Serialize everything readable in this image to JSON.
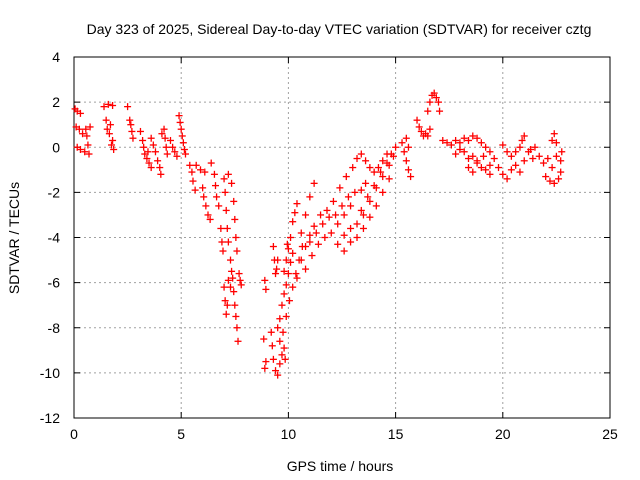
{
  "chart_data": {
    "type": "scatter",
    "title": "Day 323 of 2025, Sidereal Day-to-day VTEC variation (SDTVAR) for receiver cztg",
    "xlabel": "GPS time / hours",
    "ylabel": "SDTVAR / TECUs",
    "xlim": [
      0,
      25
    ],
    "ylim": [
      -12,
      4
    ],
    "xticks": [
      0,
      5,
      10,
      15,
      20,
      25
    ],
    "yticks": [
      4,
      2,
      0,
      -2,
      -4,
      -6,
      -8,
      -10,
      -12
    ],
    "grid": true,
    "marker": "+",
    "marker_color": "#ff0000",
    "series": [
      {
        "name": "SDTVAR",
        "points": [
          [
            0.05,
            1.7
          ],
          [
            0.15,
            1.6
          ],
          [
            0.3,
            1.5
          ],
          [
            0.1,
            0.9
          ],
          [
            0.25,
            0.8
          ],
          [
            0.4,
            0.6
          ],
          [
            0.15,
            0.0
          ],
          [
            0.3,
            -0.1
          ],
          [
            0.5,
            -0.2
          ],
          [
            0.55,
            0.8
          ],
          [
            0.6,
            0.5
          ],
          [
            0.65,
            0.1
          ],
          [
            0.7,
            -0.3
          ],
          [
            0.75,
            0.9
          ],
          [
            1.4,
            1.8
          ],
          [
            1.6,
            1.9
          ],
          [
            1.8,
            1.85
          ],
          [
            1.5,
            1.2
          ],
          [
            1.7,
            1.0
          ],
          [
            1.55,
            0.8
          ],
          [
            1.65,
            0.6
          ],
          [
            1.8,
            0.3
          ],
          [
            1.75,
            0.1
          ],
          [
            1.85,
            -0.1
          ],
          [
            2.5,
            1.8
          ],
          [
            2.6,
            1.2
          ],
          [
            2.65,
            1.0
          ],
          [
            2.7,
            0.7
          ],
          [
            2.75,
            0.4
          ],
          [
            3.1,
            0.7
          ],
          [
            3.2,
            0.3
          ],
          [
            3.25,
            0.0
          ],
          [
            3.3,
            -0.3
          ],
          [
            3.4,
            -0.5
          ],
          [
            3.5,
            -0.7
          ],
          [
            3.6,
            -0.9
          ],
          [
            3.45,
            -0.2
          ],
          [
            3.6,
            0.4
          ],
          [
            3.7,
            0.1
          ],
          [
            3.8,
            -0.2
          ],
          [
            3.9,
            -0.6
          ],
          [
            4.0,
            -0.9
          ],
          [
            4.05,
            -1.2
          ],
          [
            4.1,
            0.6
          ],
          [
            4.2,
            0.8
          ],
          [
            4.25,
            0.4
          ],
          [
            4.3,
            0.0
          ],
          [
            4.35,
            -0.3
          ],
          [
            4.5,
            0.3
          ],
          [
            4.6,
            0.0
          ],
          [
            4.7,
            -0.2
          ],
          [
            4.8,
            -0.4
          ],
          [
            4.9,
            1.4
          ],
          [
            4.95,
            1.1
          ],
          [
            5.0,
            0.8
          ],
          [
            5.05,
            0.5
          ],
          [
            5.1,
            0.2
          ],
          [
            5.15,
            -0.1
          ],
          [
            5.2,
            -0.3
          ],
          [
            5.4,
            -0.8
          ],
          [
            5.5,
            -1.1
          ],
          [
            5.55,
            -1.5
          ],
          [
            5.65,
            -1.9
          ],
          [
            5.7,
            -0.8
          ],
          [
            5.9,
            -1.0
          ],
          [
            6.1,
            -1.1
          ],
          [
            6.0,
            -1.8
          ],
          [
            6.05,
            -2.2
          ],
          [
            6.15,
            -2.6
          ],
          [
            6.25,
            -3.0
          ],
          [
            6.35,
            -3.2
          ],
          [
            6.4,
            -0.7
          ],
          [
            6.55,
            -1.2
          ],
          [
            6.6,
            -1.7
          ],
          [
            6.65,
            -2.2
          ],
          [
            6.75,
            -2.6
          ],
          [
            6.85,
            -3.6
          ],
          [
            6.9,
            -4.2
          ],
          [
            6.95,
            -4.6
          ],
          [
            7.0,
            -1.4
          ],
          [
            7.05,
            -2.0
          ],
          [
            7.1,
            -2.8
          ],
          [
            7.15,
            -3.6
          ],
          [
            7.2,
            -4.2
          ],
          [
            7.3,
            -5.0
          ],
          [
            7.35,
            -5.5
          ],
          [
            7.4,
            -5.8
          ],
          [
            7.45,
            -6.4
          ],
          [
            7.5,
            -7.0
          ],
          [
            7.55,
            -7.5
          ],
          [
            7.6,
            -8.0
          ],
          [
            7.65,
            -8.6
          ],
          [
            7.0,
            -6.2
          ],
          [
            7.05,
            -6.8
          ],
          [
            7.1,
            -7.4
          ],
          [
            7.15,
            -7.0
          ],
          [
            7.2,
            -5.9
          ],
          [
            7.3,
            -6.2
          ],
          [
            7.2,
            -1.2
          ],
          [
            7.35,
            -1.6
          ],
          [
            7.45,
            -2.4
          ],
          [
            7.5,
            -3.2
          ],
          [
            7.55,
            -4.0
          ],
          [
            7.6,
            -4.6
          ],
          [
            7.7,
            -5.6
          ],
          [
            7.75,
            -5.9
          ],
          [
            7.8,
            -6.1
          ],
          [
            8.9,
            -5.9
          ],
          [
            8.95,
            -6.3
          ],
          [
            8.85,
            -8.5
          ],
          [
            8.9,
            -9.8
          ],
          [
            8.95,
            -9.5
          ],
          [
            9.2,
            -8.2
          ],
          [
            9.25,
            -8.8
          ],
          [
            9.3,
            -9.4
          ],
          [
            9.4,
            -9.9
          ],
          [
            9.5,
            -10.1
          ],
          [
            9.6,
            -9.6
          ],
          [
            9.7,
            -9.2
          ],
          [
            9.8,
            -8.9
          ],
          [
            9.85,
            -9.4
          ],
          [
            9.3,
            -4.4
          ],
          [
            9.35,
            -5.0
          ],
          [
            9.4,
            -5.6
          ],
          [
            9.45,
            -5.4
          ],
          [
            9.5,
            -5.0
          ],
          [
            9.5,
            -8.0
          ],
          [
            9.6,
            -7.6
          ],
          [
            9.7,
            -7.0
          ],
          [
            9.8,
            -6.5
          ],
          [
            9.9,
            -6.1
          ],
          [
            10.0,
            -5.6
          ],
          [
            10.1,
            -5.1
          ],
          [
            10.2,
            -4.7
          ],
          [
            9.6,
            -8.6
          ],
          [
            9.75,
            -8.2
          ],
          [
            9.9,
            -7.5
          ],
          [
            10.05,
            -6.8
          ],
          [
            10.2,
            -6.2
          ],
          [
            10.35,
            -5.6
          ],
          [
            10.5,
            -5.0
          ],
          [
            10.65,
            -4.4
          ],
          [
            9.8,
            -5.5
          ],
          [
            9.9,
            -5.0
          ],
          [
            10.0,
            -4.5
          ],
          [
            9.95,
            -4.3
          ],
          [
            10.1,
            -4.0
          ],
          [
            10.2,
            -3.3
          ],
          [
            10.3,
            -2.9
          ],
          [
            10.4,
            -2.5
          ],
          [
            10.6,
            -3.8
          ],
          [
            10.8,
            -3.0
          ],
          [
            11.0,
            -2.2
          ],
          [
            11.2,
            -1.6
          ],
          [
            10.4,
            -5.8
          ],
          [
            10.6,
            -5.0
          ],
          [
            10.8,
            -4.4
          ],
          [
            11.0,
            -3.9
          ],
          [
            11.2,
            -3.5
          ],
          [
            11.5,
            -3.0
          ],
          [
            11.8,
            -2.8
          ],
          [
            12.1,
            -2.4
          ],
          [
            12.4,
            -1.8
          ],
          [
            12.7,
            -1.3
          ],
          [
            13.0,
            -0.9
          ],
          [
            13.2,
            -0.5
          ],
          [
            10.8,
            -5.4
          ],
          [
            11.1,
            -4.8
          ],
          [
            11.4,
            -4.3
          ],
          [
            11.7,
            -4.0
          ],
          [
            12.0,
            -3.8
          ],
          [
            12.3,
            -3.4
          ],
          [
            12.6,
            -3.0
          ],
          [
            12.9,
            -2.6
          ],
          [
            11.0,
            -4.2
          ],
          [
            11.3,
            -3.8
          ],
          [
            11.6,
            -3.4
          ],
          [
            11.9,
            -3.1
          ],
          [
            12.2,
            -3.0
          ],
          [
            12.5,
            -2.6
          ],
          [
            12.8,
            -2.2
          ],
          [
            13.1,
            -2.0
          ],
          [
            13.4,
            -1.9
          ],
          [
            13.6,
            -1.6
          ],
          [
            12.3,
            -4.3
          ],
          [
            12.6,
            -3.9
          ],
          [
            12.9,
            -3.6
          ],
          [
            13.2,
            -3.4
          ],
          [
            13.5,
            -3.0
          ],
          [
            13.8,
            -2.4
          ],
          [
            14.1,
            -1.8
          ],
          [
            14.4,
            -1.3
          ],
          [
            14.7,
            -0.8
          ],
          [
            14.9,
            -0.4
          ],
          [
            12.6,
            -4.6
          ],
          [
            12.9,
            -4.2
          ],
          [
            13.2,
            -4.0
          ],
          [
            13.5,
            -3.6
          ],
          [
            13.8,
            -3.1
          ],
          [
            14.1,
            -2.6
          ],
          [
            14.4,
            -2.0
          ],
          [
            14.7,
            -1.4
          ],
          [
            13.4,
            -0.3
          ],
          [
            13.6,
            -0.6
          ],
          [
            13.8,
            -0.9
          ],
          [
            14.0,
            -1.1
          ],
          [
            14.2,
            -0.9
          ],
          [
            14.4,
            -0.6
          ],
          [
            14.6,
            -0.3
          ],
          [
            13.4,
            -2.8
          ],
          [
            13.7,
            -2.2
          ],
          [
            14.0,
            -1.7
          ],
          [
            14.3,
            -1.1
          ],
          [
            14.6,
            -0.7
          ],
          [
            14.8,
            -0.3
          ],
          [
            15.0,
            0.0
          ],
          [
            15.3,
            0.2
          ],
          [
            15.4,
            -0.2
          ],
          [
            15.5,
            -0.6
          ],
          [
            15.6,
            -1.0
          ],
          [
            15.7,
            -1.3
          ],
          [
            15.5,
            0.4
          ],
          [
            15.6,
            0.0
          ],
          [
            16.0,
            1.2
          ],
          [
            16.1,
            0.9
          ],
          [
            16.2,
            0.7
          ],
          [
            16.3,
            0.5
          ],
          [
            16.4,
            0.6
          ],
          [
            16.5,
            0.5
          ],
          [
            16.6,
            0.8
          ],
          [
            16.5,
            1.6
          ],
          [
            16.6,
            2.0
          ],
          [
            16.7,
            2.3
          ],
          [
            16.8,
            2.4
          ],
          [
            16.9,
            2.2
          ],
          [
            17.0,
            2.0
          ],
          [
            17.05,
            1.6
          ],
          [
            17.2,
            0.3
          ],
          [
            17.4,
            0.2
          ],
          [
            17.6,
            0.1
          ],
          [
            17.8,
            0.3
          ],
          [
            18.0,
            0.2
          ],
          [
            18.2,
            0.4
          ],
          [
            18.4,
            0.3
          ],
          [
            18.6,
            0.5
          ],
          [
            18.8,
            0.4
          ],
          [
            19.0,
            0.2
          ],
          [
            19.2,
            0.0
          ],
          [
            19.4,
            -0.2
          ],
          [
            17.8,
            -0.3
          ],
          [
            18.0,
            -0.1
          ],
          [
            18.2,
            -0.2
          ],
          [
            18.4,
            -0.5
          ],
          [
            18.6,
            -0.4
          ],
          [
            18.8,
            -0.7
          ],
          [
            19.0,
            -0.9
          ],
          [
            19.2,
            -1.0
          ],
          [
            19.4,
            -1.2
          ],
          [
            18.4,
            -0.9
          ],
          [
            18.6,
            -1.1
          ],
          [
            18.8,
            -0.6
          ],
          [
            19.1,
            -0.4
          ],
          [
            19.4,
            -0.8
          ],
          [
            19.6,
            -0.5
          ],
          [
            19.8,
            -0.9
          ],
          [
            20.0,
            -1.2
          ],
          [
            20.2,
            -1.4
          ],
          [
            20.4,
            -1.0
          ],
          [
            20.6,
            -0.8
          ],
          [
            20.8,
            -1.1
          ],
          [
            21.0,
            -0.6
          ],
          [
            21.2,
            -0.2
          ],
          [
            21.4,
            -0.5
          ],
          [
            20.0,
            0.1
          ],
          [
            20.2,
            -0.2
          ],
          [
            20.4,
            -0.4
          ],
          [
            20.6,
            -0.2
          ],
          [
            20.8,
            0.0
          ],
          [
            20.9,
            0.3
          ],
          [
            21.0,
            0.5
          ],
          [
            21.3,
            -0.1
          ],
          [
            21.5,
            0.0
          ],
          [
            21.7,
            -0.4
          ],
          [
            21.9,
            -0.7
          ],
          [
            22.1,
            -0.5
          ],
          [
            22.3,
            -0.9
          ],
          [
            22.5,
            -0.4
          ],
          [
            22.7,
            -0.6
          ],
          [
            22.75,
            -0.2
          ],
          [
            22.0,
            -1.3
          ],
          [
            22.2,
            -1.5
          ],
          [
            22.4,
            -1.6
          ],
          [
            22.6,
            -1.4
          ],
          [
            22.7,
            -1.1
          ],
          [
            22.3,
            0.3
          ],
          [
            22.4,
            0.6
          ],
          [
            22.5,
            0.2
          ]
        ]
      }
    ]
  }
}
